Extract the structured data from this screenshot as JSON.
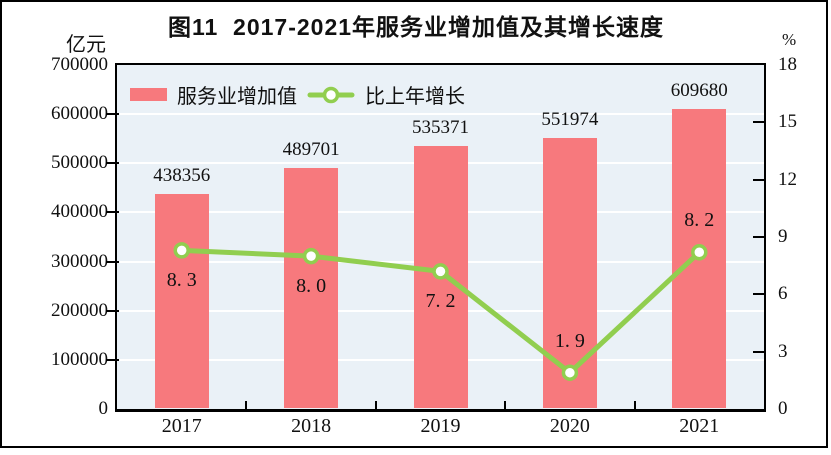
{
  "figure": {
    "title": "图11  2017-2021年服务业增加值及其增长速度",
    "left_axis_unit": "亿元",
    "right_axis_unit": "%"
  },
  "legend": {
    "items": [
      {
        "label": "服务业增加值",
        "swatch": "bar"
      },
      {
        "label": "比上年增长",
        "swatch": "line-marker"
      }
    ]
  },
  "colors": {
    "bar": "#F7797D",
    "line": "#91CE4F",
    "marker_fill": "#FFFFFF",
    "plot_bg": "#EAF1F7",
    "gridline": "#FFFFFF",
    "axis": "#000000",
    "text": "#111111"
  },
  "chart_data": {
    "type": "bar+line combo",
    "title": "图11  2017-2021年服务业增加值及其增长速度",
    "categories": [
      "2017",
      "2018",
      "2019",
      "2020",
      "2021"
    ],
    "series": [
      {
        "name": "服务业增加值",
        "type": "bar",
        "axis": "left",
        "unit": "亿元",
        "values": [
          438356,
          489701,
          535371,
          551974,
          609680
        ],
        "data_labels": [
          "438356",
          "489701",
          "535371",
          "551974",
          "609680"
        ]
      },
      {
        "name": "比上年增长",
        "type": "line",
        "axis": "right",
        "unit": "%",
        "values": [
          8.3,
          8.0,
          7.2,
          1.9,
          8.2
        ],
        "data_labels": [
          "8. 3",
          "8. 0",
          "7. 2",
          "1. 9",
          "8. 2"
        ],
        "label_placement": [
          "below",
          "below",
          "below",
          "above",
          "above"
        ]
      }
    ],
    "left_axis": {
      "title": "亿元",
      "min": 0,
      "max": 700000,
      "step": 100000,
      "tick_labels": [
        "700000",
        "600000",
        "500000",
        "400000",
        "300000",
        "200000",
        "100000",
        "0"
      ]
    },
    "right_axis": {
      "title": "%",
      "min": 0,
      "max": 18,
      "step": 3,
      "tick_labels": [
        "18",
        "15",
        "12",
        "9",
        "6",
        "3",
        "0"
      ]
    },
    "x_axis": {
      "tick_labels": [
        "2017",
        "2018",
        "2019",
        "2020",
        "2021"
      ]
    },
    "grid": "horizontal white gridlines on light blue plot background",
    "legend_position": "top-left inside plot"
  }
}
